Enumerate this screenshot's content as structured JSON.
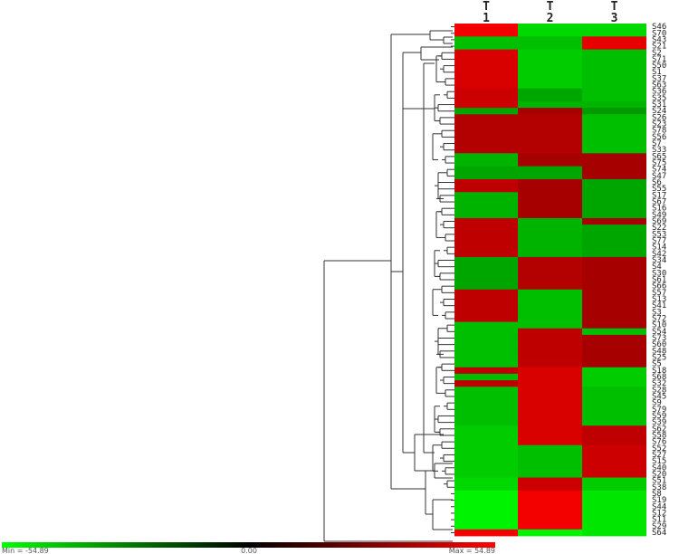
{
  "chart_data": {
    "type": "heatmap",
    "columns": [
      "T\n1",
      "T\n2",
      "T\n3"
    ],
    "column_labels": [
      {
        "top": "T",
        "bottom": "1"
      },
      {
        "top": "T",
        "bottom": "2"
      },
      {
        "top": "T",
        "bottom": "3"
      }
    ],
    "rows": [
      "S46",
      "S70",
      "S43",
      "S21",
      "S2",
      "S71",
      "S50",
      "S1",
      "S37",
      "S63",
      "S36",
      "S35",
      "S31",
      "S24",
      "S26",
      "S23",
      "S78",
      "S56",
      "S7",
      "S33",
      "S65",
      "S75",
      "S74",
      "S47",
      "S6",
      "S55",
      "S17",
      "S67",
      "S16",
      "S49",
      "S69",
      "S22",
      "S53",
      "S77",
      "S14",
      "S42",
      "S34",
      "S4",
      "S30",
      "S61",
      "S66",
      "S57",
      "S13",
      "S41",
      "S3",
      "S72",
      "S10",
      "S54",
      "S73",
      "S60",
      "S48",
      "S25",
      "S5",
      "S18",
      "S68",
      "S32",
      "S28",
      "S45",
      "S9",
      "S79",
      "S59",
      "S39",
      "S62",
      "S58",
      "S76",
      "S52",
      "S27",
      "S15",
      "S40",
      "S20",
      "S51",
      "S38",
      "S8",
      "S19",
      "S44",
      "S12",
      "S11",
      "S29",
      "S64"
    ],
    "values": [
      [
        50,
        -40,
        -40
      ],
      [
        50,
        -40,
        -40
      ],
      [
        -30,
        -30,
        45
      ],
      [
        -30,
        -30,
        45
      ],
      [
        40,
        -35,
        -30
      ],
      [
        40,
        -35,
        -30
      ],
      [
        40,
        -35,
        -30
      ],
      [
        40,
        -35,
        -30
      ],
      [
        40,
        -35,
        -30
      ],
      [
        40,
        -35,
        -30
      ],
      [
        35,
        -20,
        -30
      ],
      [
        35,
        -20,
        -30
      ],
      [
        35,
        -25,
        -25
      ],
      [
        -20,
        20,
        -15
      ],
      [
        25,
        25,
        -30
      ],
      [
        25,
        25,
        -30
      ],
      [
        25,
        25,
        -30
      ],
      [
        25,
        25,
        -30
      ],
      [
        25,
        25,
        -30
      ],
      [
        25,
        25,
        -30
      ],
      [
        -25,
        20,
        20
      ],
      [
        -25,
        20,
        20
      ],
      [
        -20,
        -20,
        20
      ],
      [
        -20,
        -20,
        20
      ],
      [
        30,
        20,
        -20
      ],
      [
        30,
        20,
        -20
      ],
      [
        -25,
        20,
        -20
      ],
      [
        -25,
        20,
        -20
      ],
      [
        -25,
        20,
        -20
      ],
      [
        -25,
        20,
        -20
      ],
      [
        30,
        -25,
        20
      ],
      [
        30,
        -25,
        -20
      ],
      [
        30,
        -25,
        -20
      ],
      [
        30,
        -25,
        -20
      ],
      [
        30,
        -25,
        -20
      ],
      [
        30,
        -25,
        -20
      ],
      [
        -20,
        25,
        20
      ],
      [
        -20,
        25,
        20
      ],
      [
        -20,
        25,
        20
      ],
      [
        -20,
        25,
        20
      ],
      [
        -20,
        25,
        20
      ],
      [
        30,
        -30,
        20
      ],
      [
        30,
        -30,
        20
      ],
      [
        30,
        -30,
        20
      ],
      [
        30,
        -30,
        20
      ],
      [
        30,
        -30,
        20
      ],
      [
        -30,
        -30,
        20
      ],
      [
        -30,
        30,
        -30
      ],
      [
        -30,
        30,
        20
      ],
      [
        -30,
        30,
        20
      ],
      [
        -30,
        30,
        20
      ],
      [
        -30,
        30,
        20
      ],
      [
        -30,
        30,
        20
      ],
      [
        30,
        40,
        -35
      ],
      [
        -30,
        40,
        -35
      ],
      [
        30,
        40,
        -35
      ],
      [
        -30,
        40,
        -30
      ],
      [
        -30,
        40,
        -30
      ],
      [
        -30,
        40,
        -30
      ],
      [
        -30,
        40,
        -30
      ],
      [
        -30,
        40,
        -30
      ],
      [
        -30,
        40,
        -30
      ],
      [
        -35,
        40,
        30
      ],
      [
        -35,
        40,
        30
      ],
      [
        -35,
        40,
        30
      ],
      [
        -35,
        -30,
        35
      ],
      [
        -35,
        -30,
        35
      ],
      [
        -35,
        -30,
        35
      ],
      [
        -35,
        -30,
        35
      ],
      [
        -35,
        -30,
        35
      ],
      [
        -40,
        35,
        -35
      ],
      [
        -40,
        35,
        -35
      ],
      [
        -50,
        50,
        -45
      ],
      [
        -50,
        50,
        -45
      ],
      [
        -50,
        50,
        -45
      ],
      [
        -50,
        50,
        -45
      ],
      [
        -50,
        50,
        -45
      ],
      [
        -50,
        50,
        -45
      ],
      [
        50,
        -50,
        -45
      ]
    ],
    "color_scale": {
      "min": -54.89,
      "max": 54.89,
      "mid": 0,
      "min_label": "Min = -54.89",
      "mid_label": "0.00",
      "max_label": "Max = 54.89",
      "low_color": "#00ff00",
      "mid_color": "#000000",
      "high_color": "#ff0000"
    },
    "dendrogram": "row clustering tree on left side"
  }
}
